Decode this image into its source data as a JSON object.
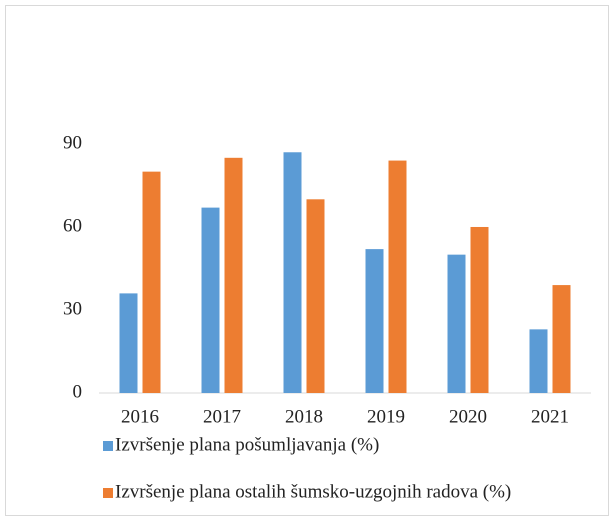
{
  "chart_data": {
    "type": "bar",
    "categories": [
      "2016",
      "2017",
      "2018",
      "2019",
      "2020",
      "2021"
    ],
    "series": [
      {
        "name": "Izvršenje plana pošumljavanja (%)",
        "color": "#5b9bd5",
        "values": [
          36,
          67,
          87,
          52,
          50,
          23
        ]
      },
      {
        "name": "Izvršenje plana ostalih šumsko-uzgojnih radova (%)",
        "color": "#ed7d31",
        "values": [
          80,
          85,
          70,
          84,
          60,
          39
        ]
      }
    ],
    "ylim": [
      0,
      100
    ],
    "yticks": [
      0,
      30,
      60,
      90
    ],
    "grid": false,
    "legend": "bottom"
  }
}
